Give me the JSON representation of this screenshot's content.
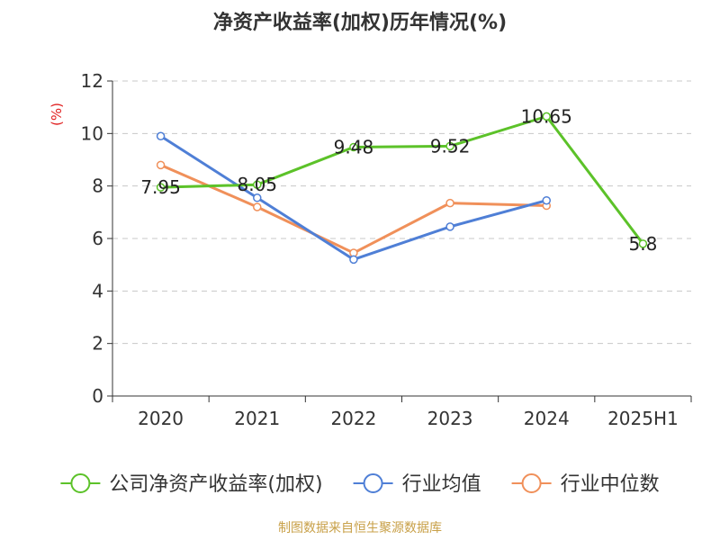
{
  "chart_data": {
    "type": "line",
    "title": "净资产收益率(加权)历年情况(%)",
    "ylabel": "(%)",
    "categories": [
      "2020",
      "2021",
      "2022",
      "2023",
      "2024",
      "2025H1"
    ],
    "ylim": [
      0,
      12
    ],
    "yticks": [
      0,
      2,
      4,
      6,
      8,
      10,
      12
    ],
    "grid": true,
    "legend_position": "bottom",
    "series": [
      {
        "name": "公司净资产收益率(加权)",
        "color": "#5cc229",
        "values": [
          7.95,
          8.05,
          9.48,
          9.52,
          10.65,
          5.8
        ],
        "labels": [
          "7.95",
          "8.05",
          "9.48",
          "9.52",
          "10.65",
          "5.8"
        ]
      },
      {
        "name": "行业均值",
        "color": "#4f7fd6",
        "values": [
          9.9,
          7.55,
          5.2,
          6.45,
          7.45,
          null
        ]
      },
      {
        "name": "行业中位数",
        "color": "#f0905a",
        "values": [
          8.8,
          7.2,
          5.45,
          7.35,
          7.25,
          null
        ]
      }
    ]
  },
  "source": "制图数据来自恒生聚源数据库"
}
